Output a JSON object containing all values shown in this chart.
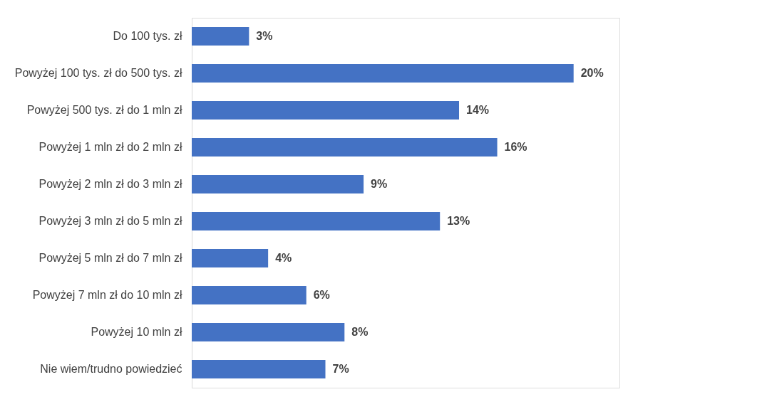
{
  "chart_data": {
    "type": "bar",
    "orientation": "horizontal",
    "categories": [
      "Do 100 tys. zł",
      "Powyżej 100 tys. zł do 500 tys. zł",
      "Powyżej 500 tys. zł do 1 mln zł",
      "Powyżej 1 mln zł do 2 mln zł",
      "Powyżej 2 mln zł do 3 mln zł",
      "Powyżej 3 mln zł do 5 mln zł",
      "Powyżej 5 mln zł do 7 mln zł",
      "Powyżej 7 mln zł do 10 mln zł",
      "Powyżej 10 mln zł",
      "Nie wiem/trudno powiedzieć"
    ],
    "values": [
      3,
      20,
      14,
      16,
      9,
      13,
      4,
      6,
      8,
      7
    ],
    "value_labels": [
      "3%",
      "20%",
      "14%",
      "16%",
      "9%",
      "13%",
      "4%",
      "6%",
      "8%",
      "7%"
    ],
    "color": "#4472c4",
    "tick_labels": "y"
  }
}
